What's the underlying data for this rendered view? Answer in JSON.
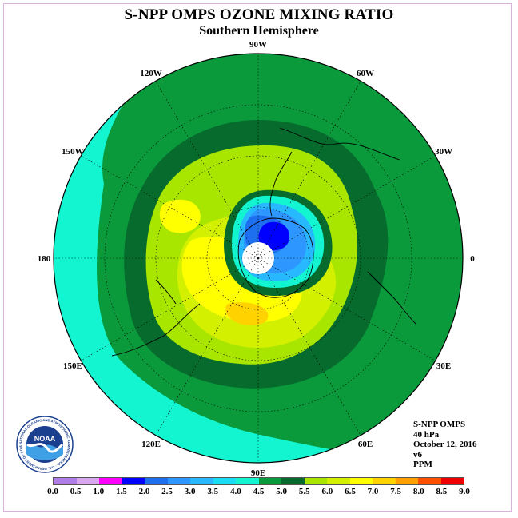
{
  "title": "S-NPP OMPS OZONE MIXING RATIO",
  "subtitle": "Southern Hemisphere",
  "longitude_labels": [
    "90W",
    "60W",
    "30W",
    "0",
    "30E",
    "60E",
    "90E",
    "120E",
    "150E",
    "180",
    "150W",
    "120W"
  ],
  "info": {
    "instrument": "S-NPP OMPS",
    "level": "40 hPa",
    "date": "October 12, 2016",
    "version": "v6",
    "units": "PPM"
  },
  "logo": {
    "text": "NOAA",
    "ring_text": "NATIONAL OCEANIC AND ATMOSPHERIC ADMINISTRATION · U.S. DEPARTMENT OF COMMERCE"
  },
  "colorbar": {
    "ticks": [
      "0.0",
      "0.5",
      "1.0",
      "1.5",
      "2.0",
      "2.5",
      "3.0",
      "3.5",
      "4.0",
      "4.5",
      "5.0",
      "5.5",
      "6.0",
      "6.5",
      "7.0",
      "7.5",
      "8.0",
      "8.5",
      "9.0"
    ],
    "colors": [
      "#b07ee8",
      "#d9a6f0",
      "#ff00ff",
      "#0000ff",
      "#1e6ef0",
      "#2d96ff",
      "#28b8ff",
      "#19ddf5",
      "#12f5d0",
      "#0a9a3c",
      "#066b2c",
      "#a8e600",
      "#d2f000",
      "#ffff00",
      "#ffd200",
      "#ffa000",
      "#ff5000",
      "#f00000",
      "#8c5a32"
    ]
  }
}
